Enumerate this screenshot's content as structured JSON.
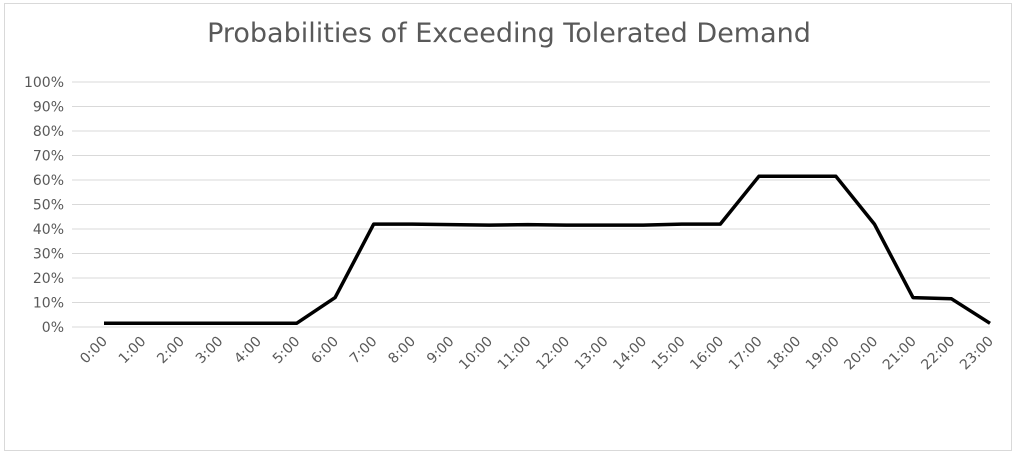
{
  "chart_data": {
    "type": "line",
    "title": "Probabilities of Exceeding Tolerated Demand",
    "xlabel": "",
    "ylabel": "",
    "ylim": [
      0,
      100
    ],
    "y_ticks": [
      "0%",
      "10%",
      "20%",
      "30%",
      "40%",
      "50%",
      "60%",
      "70%",
      "80%",
      "90%",
      "100%"
    ],
    "categories": [
      "0:00",
      "1:00",
      "2:00",
      "3:00",
      "4:00",
      "5:00",
      "6:00",
      "7:00",
      "8:00",
      "9:00",
      "10:00",
      "11:00",
      "12:00",
      "13:00",
      "14:00",
      "15:00",
      "16:00",
      "17:00",
      "18:00",
      "19:00",
      "20:00",
      "21:00",
      "22:00",
      "23:00"
    ],
    "series": [
      {
        "values": [
          1.5,
          1.5,
          1.5,
          1.5,
          1.5,
          1.5,
          12,
          42,
          42,
          41.8,
          41.6,
          41.8,
          41.6,
          41.6,
          41.6,
          42,
          42,
          61.5,
          61.5,
          61.5,
          42,
          12,
          11.5,
          1.5
        ],
        "color": "#000000"
      }
    ],
    "grid": true,
    "legend": "none"
  }
}
